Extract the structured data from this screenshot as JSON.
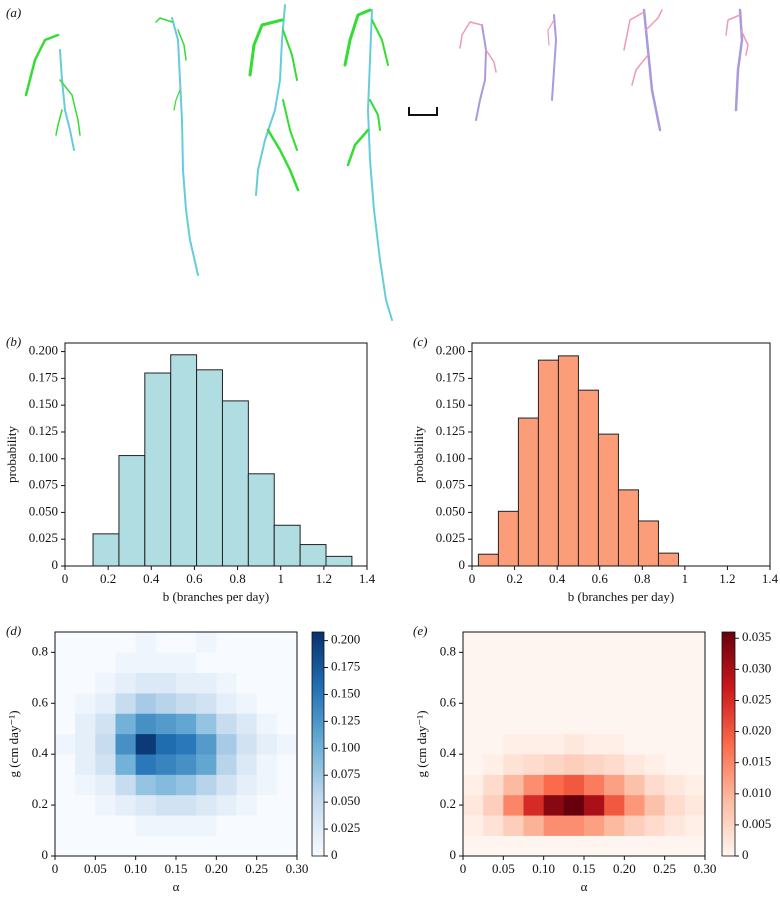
{
  "figure_panel": {
    "label": "(a)"
  },
  "chart_data": [
    {
      "type": "histogram",
      "panel": "(b)",
      "xlabel": "b (branches per day)",
      "ylabel": "probability",
      "bins": [
        0.13,
        0.25,
        0.37,
        0.49,
        0.61,
        0.73,
        0.85,
        0.97,
        1.09,
        1.21,
        1.33
      ],
      "values": [
        0.03,
        0.103,
        0.18,
        0.197,
        0.183,
        0.154,
        0.086,
        0.038,
        0.02,
        0.009
      ],
      "color": "#b0dde2",
      "edgecolor": "#222222",
      "xlim": [
        0,
        1.4
      ],
      "xticks": [
        0,
        0.2,
        0.4,
        0.6,
        0.8,
        1.0,
        1.2,
        1.4
      ],
      "ylim": [
        0,
        0.208
      ],
      "yticks": [
        0,
        0.025,
        {
          "value": 0.05,
          "label": "0.050"
        },
        0.075,
        {
          "value": 0.1,
          "label": "0.100"
        },
        0.125,
        {
          "value": 0.15,
          "label": "0.150"
        },
        0.175,
        {
          "value": 0.2,
          "label": "0.200"
        }
      ]
    },
    {
      "type": "histogram",
      "panel": "(c)",
      "xlabel": "b (branches per day)",
      "ylabel": "probability",
      "bins": [
        0.03,
        0.124,
        0.218,
        0.312,
        0.406,
        0.5,
        0.594,
        0.688,
        0.782,
        0.876,
        0.97
      ],
      "values": [
        0.011,
        0.051,
        0.138,
        0.192,
        0.196,
        0.164,
        0.123,
        0.071,
        0.042,
        0.012
      ],
      "color": "#fc9d7a",
      "edgecolor": "#222222",
      "xlim": [
        0,
        1.4
      ],
      "xticks": [
        0,
        0.2,
        0.4,
        0.6,
        0.8,
        1.0,
        1.2,
        1.4
      ],
      "ylim": [
        0,
        0.208
      ],
      "yticks": [
        0,
        0.025,
        {
          "value": 0.05,
          "label": "0.050"
        },
        0.075,
        {
          "value": 0.1,
          "label": "0.100"
        },
        0.125,
        {
          "value": 0.15,
          "label": "0.150"
        },
        0.175,
        {
          "value": 0.2,
          "label": "0.200"
        }
      ]
    },
    {
      "type": "heatmap",
      "panel": "(d)",
      "xlabel": "α",
      "ylabel": "g (cm day⁻¹)",
      "xbins": [
        0,
        0.025,
        0.05,
        0.075,
        0.1,
        0.125,
        0.15,
        0.175,
        0.2,
        0.225,
        0.25,
        0.275,
        0.3
      ],
      "ybins": [
        0,
        0.08,
        0.16,
        0.24,
        0.32,
        0.4,
        0.48,
        0.56,
        0.64,
        0.72,
        0.8,
        0.88
      ],
      "z": [
        [
          0,
          0,
          0,
          0,
          0,
          0,
          0,
          0,
          0,
          0,
          0,
          0
        ],
        [
          0,
          0,
          0,
          0,
          0.01,
          0.01,
          0.01,
          0.01,
          0,
          0,
          0,
          0
        ],
        [
          0,
          0,
          0.01,
          0.02,
          0.03,
          0.04,
          0.04,
          0.03,
          0.02,
          0.01,
          0,
          0
        ],
        [
          0,
          0.01,
          0.02,
          0.05,
          0.08,
          0.09,
          0.08,
          0.06,
          0.04,
          0.02,
          0.01,
          0
        ],
        [
          0,
          0.02,
          0.04,
          0.1,
          0.15,
          0.14,
          0.13,
          0.11,
          0.06,
          0.03,
          0.01,
          0
        ],
        [
          0.01,
          0.02,
          0.05,
          0.13,
          0.2,
          0.16,
          0.15,
          0.12,
          0.07,
          0.04,
          0.02,
          0.01
        ],
        [
          0,
          0.02,
          0.04,
          0.1,
          0.13,
          0.12,
          0.11,
          0.08,
          0.05,
          0.03,
          0.01,
          0
        ],
        [
          0,
          0.01,
          0.02,
          0.05,
          0.07,
          0.06,
          0.05,
          0.04,
          0.02,
          0.01,
          0,
          0
        ],
        [
          0,
          0,
          0.01,
          0.02,
          0.03,
          0.03,
          0.02,
          0.02,
          0.01,
          0,
          0,
          0
        ],
        [
          0,
          0,
          0,
          0.01,
          0.01,
          0.01,
          0.01,
          0,
          0,
          0,
          0,
          0
        ],
        [
          0,
          0,
          0,
          0,
          0.01,
          0,
          0,
          0.01,
          0,
          0,
          0,
          0
        ]
      ],
      "colormap": [
        "#f7fbff",
        "#c6dbef",
        "#6baed6",
        "#2171b5",
        "#08306b"
      ],
      "clim": [
        0,
        0.208
      ],
      "cticks": [
        0,
        0.025,
        {
          "value": 0.05,
          "label": "0.050"
        },
        0.075,
        {
          "value": 0.1,
          "label": "0.100"
        },
        0.125,
        {
          "value": 0.15,
          "label": "0.150"
        },
        0.175,
        {
          "value": 0.2,
          "label": "0.200"
        }
      ],
      "xlim": [
        0,
        0.3
      ],
      "xticks": [
        0,
        0.05,
        {
          "value": 0.1,
          "label": "0.10"
        },
        0.15,
        {
          "value": 0.2,
          "label": "0.20"
        },
        0.25,
        {
          "value": 0.3,
          "label": "0.30"
        }
      ],
      "ylim": [
        0,
        0.88
      ],
      "yticks": [
        0,
        0.2,
        0.4,
        0.6,
        0.8
      ]
    },
    {
      "type": "heatmap",
      "panel": "(e)",
      "xlabel": "α",
      "ylabel": "g (cm day⁻¹)",
      "xbins": [
        0,
        0.025,
        0.05,
        0.075,
        0.1,
        0.125,
        0.15,
        0.175,
        0.2,
        0.225,
        0.25,
        0.275,
        0.3
      ],
      "ybins": [
        0,
        0.08,
        0.16,
        0.24,
        0.32,
        0.4,
        0.48,
        0.56,
        0.64,
        0.72,
        0.8,
        0.88
      ],
      "z": [
        [
          0,
          0,
          0,
          0,
          0,
          0,
          0,
          0,
          0,
          0,
          0,
          0
        ],
        [
          0.001,
          0.003,
          0.006,
          0.01,
          0.014,
          0.014,
          0.012,
          0.009,
          0.006,
          0.004,
          0.002,
          0.001
        ],
        [
          0.002,
          0.006,
          0.015,
          0.025,
          0.033,
          0.036,
          0.03,
          0.02,
          0.013,
          0.008,
          0.004,
          0.002
        ],
        [
          0.001,
          0.004,
          0.009,
          0.014,
          0.018,
          0.02,
          0.016,
          0.012,
          0.008,
          0.004,
          0.002,
          0.001
        ],
        [
          0,
          0.001,
          0.003,
          0.004,
          0.005,
          0.006,
          0.005,
          0.004,
          0.002,
          0.001,
          0,
          0
        ],
        [
          0,
          0,
          0.001,
          0.001,
          0.001,
          0.002,
          0.001,
          0.001,
          0,
          0,
          0,
          0
        ],
        [
          0,
          0,
          0,
          0,
          0,
          0,
          0,
          0,
          0,
          0,
          0,
          0
        ],
        [
          0,
          0,
          0,
          0,
          0,
          0,
          0,
          0,
          0,
          0,
          0,
          0
        ],
        [
          0,
          0,
          0,
          0,
          0,
          0,
          0,
          0,
          0,
          0,
          0,
          0
        ],
        [
          0,
          0,
          0,
          0,
          0,
          0,
          0,
          0,
          0,
          0,
          0,
          0
        ],
        [
          0,
          0,
          0,
          0,
          0,
          0,
          0,
          0,
          0,
          0,
          0,
          0
        ]
      ],
      "colormap": [
        "#fff5f0",
        "#fcbba1",
        "#fb6a4a",
        "#cb181d",
        "#67000d"
      ],
      "clim": [
        0,
        0.036
      ],
      "cticks": [
        0,
        0.005,
        {
          "value": 0.01,
          "label": "0.010"
        },
        0.015,
        {
          "value": 0.02,
          "label": "0.020"
        },
        0.025,
        {
          "value": 0.03,
          "label": "0.030"
        },
        0.035
      ],
      "xlim": [
        0,
        0.3
      ],
      "xticks": [
        0,
        0.05,
        {
          "value": 0.1,
          "label": "0.10"
        },
        0.15,
        {
          "value": 0.2,
          "label": "0.20"
        },
        0.25,
        {
          "value": 0.3,
          "label": "0.30"
        }
      ],
      "ylim": [
        0,
        0.88
      ],
      "yticks": [
        0,
        0.2,
        0.4,
        0.6,
        0.8
      ]
    }
  ]
}
